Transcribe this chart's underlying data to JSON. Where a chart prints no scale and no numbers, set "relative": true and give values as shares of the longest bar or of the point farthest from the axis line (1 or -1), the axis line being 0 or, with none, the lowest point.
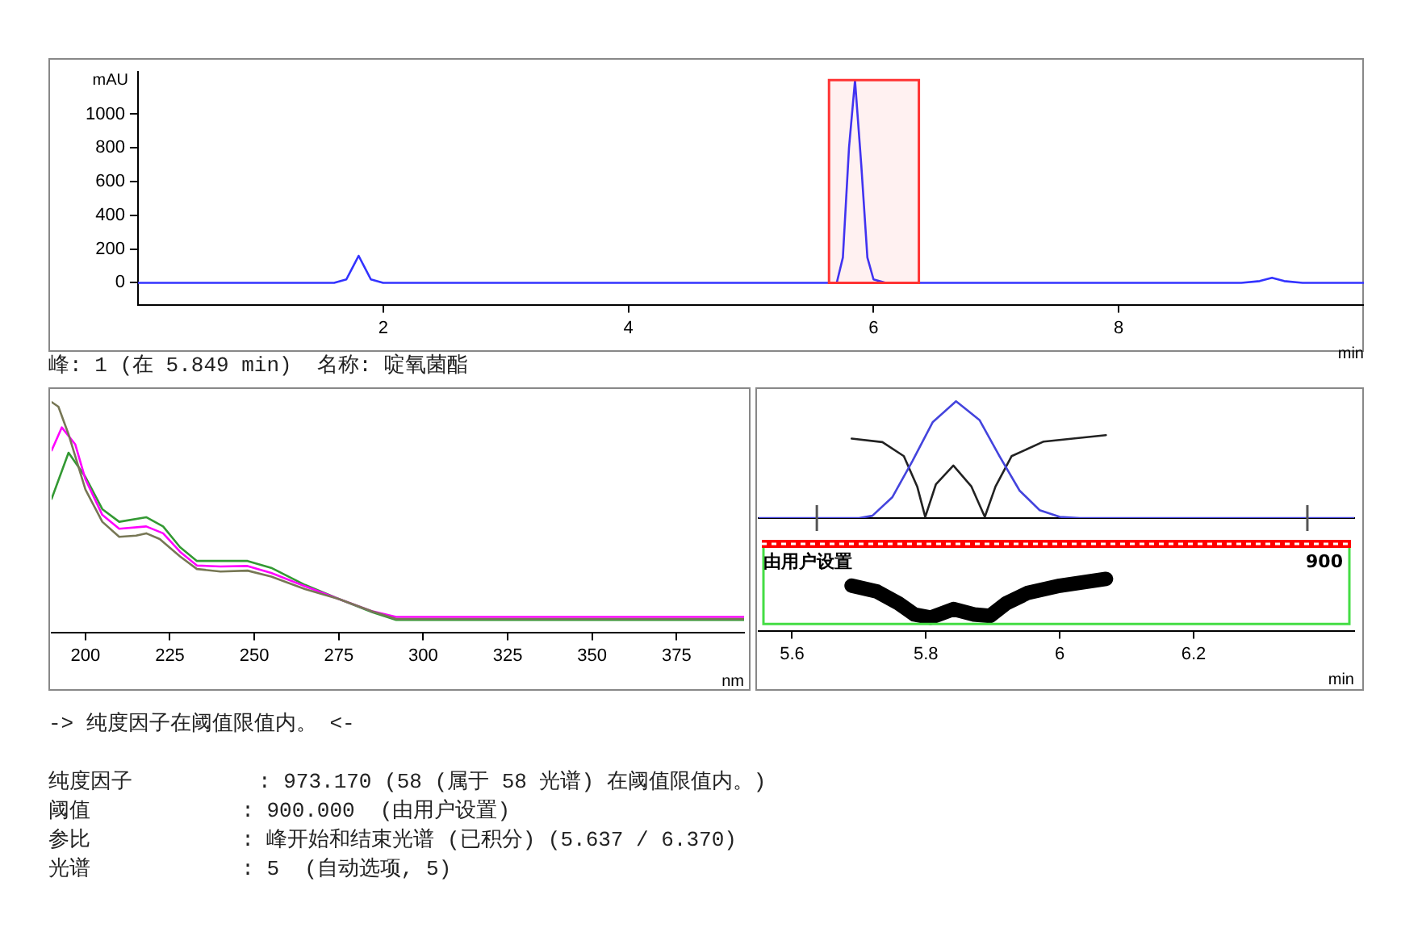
{
  "chart_data": [
    {
      "type": "line",
      "xlabel": "min",
      "ylabel": "mAU",
      "xlim": [
        0,
        10
      ],
      "xticks": [
        2,
        4,
        6,
        8
      ],
      "ylim": [
        -130,
        1250
      ],
      "yticks": [
        0,
        200,
        400,
        600,
        800,
        1000
      ],
      "legend": false,
      "x": [
        0,
        1.6,
        1.7,
        1.75,
        1.8,
        1.85,
        1.9,
        2.0,
        5.6,
        5.7,
        5.75,
        5.8,
        5.849,
        5.9,
        5.95,
        6.0,
        6.1,
        6.5,
        6.6,
        9.0,
        9.15,
        9.25,
        9.35,
        9.5,
        10
      ],
      "series": [
        {
          "color": "#3333ff",
          "values": [
            0,
            0,
            20,
            90,
            160,
            90,
            20,
            0,
            0,
            0,
            150,
            800,
            1200,
            700,
            150,
            20,
            0,
            0,
            0,
            0,
            10,
            30,
            10,
            0,
            0
          ]
        }
      ],
      "bands": [
        {
          "axis": "x",
          "from": 5.637,
          "to": 6.37,
          "color": "#ff3333"
        }
      ],
      "annotations": [
        "峰: 1 (在 5.849 min)  名称: 啶氧菌酯"
      ]
    },
    {
      "type": "line",
      "relative": true,
      "xlabel": "nm",
      "xlim": [
        190,
        395
      ],
      "xticks": [
        200,
        225,
        250,
        275,
        300,
        325,
        350,
        375
      ],
      "legend": false,
      "series": [
        {
          "color": "#777755",
          "x": [
            190,
            192,
            195,
            200,
            205,
            210,
            215,
            218,
            222,
            228,
            233,
            240,
            248,
            255,
            265,
            275,
            285,
            292,
            300,
            395
          ],
          "values": [
            1.0,
            0.98,
            0.86,
            0.62,
            0.48,
            0.415,
            0.42,
            0.43,
            0.405,
            0.33,
            0.275,
            0.264,
            0.268,
            0.242,
            0.188,
            0.145,
            0.091,
            0.058,
            0.058,
            0.058
          ]
        },
        {
          "color": "#ff00ff",
          "x": [
            190,
            193,
            197,
            200,
            205,
            210,
            218,
            223,
            228,
            233,
            240,
            248,
            255,
            265,
            275,
            285,
            292,
            300,
            395
          ],
          "values": [
            0.79,
            0.89,
            0.816,
            0.665,
            0.51,
            0.45,
            0.46,
            0.43,
            0.35,
            0.29,
            0.286,
            0.288,
            0.258,
            0.2,
            0.145,
            0.091,
            0.067,
            0.067,
            0.067
          ]
        },
        {
          "color": "#339933",
          "x": [
            190,
            195,
            200,
            205,
            210,
            218,
            223,
            228,
            233,
            240,
            248,
            255,
            265,
            275,
            285,
            292,
            300,
            395
          ],
          "values": [
            0.58,
            0.78,
            0.675,
            0.535,
            0.48,
            0.5,
            0.46,
            0.37,
            0.31,
            0.31,
            0.31,
            0.28,
            0.206,
            0.145,
            0.087,
            0.054,
            0.054,
            0.054
          ]
        }
      ]
    },
    {
      "type": "line",
      "relative": true,
      "xlim": [
        5.55,
        6.44
      ],
      "xticks": [
        5.6,
        5.8,
        6,
        6.2
      ],
      "tick_labels": false,
      "legend": false,
      "series": [
        {
          "color": "#4444dd",
          "x": [
            5.55,
            5.7,
            5.72,
            5.75,
            5.78,
            5.81,
            5.845,
            5.88,
            5.91,
            5.94,
            5.97,
            6.0,
            6.03,
            6.44
          ],
          "values": [
            0,
            0,
            0.02,
            0.18,
            0.49,
            0.82,
            1,
            0.84,
            0.53,
            0.235,
            0.067,
            0.01,
            0,
            0
          ]
        },
        {
          "color": "#222222",
          "x": [
            5.689,
            5.735,
            5.767,
            5.787,
            5.799,
            5.815,
            5.841,
            5.868,
            5.888,
            5.904,
            5.928,
            5.976,
            6.069
          ],
          "values": [
            0.68,
            0.65,
            0.53,
            0.27,
            0.01,
            0.29,
            0.45,
            0.27,
            0.01,
            0.27,
            0.53,
            0.655,
            0.71
          ]
        }
      ],
      "ref_lines": [
        {
          "axis": "x",
          "value": 5.637,
          "color": "#555555"
        },
        {
          "axis": "x",
          "value": 6.37,
          "color": "#555555"
        }
      ]
    },
    {
      "type": "line",
      "relative": true,
      "xlabel": "min",
      "xlim": [
        5.55,
        6.44
      ],
      "xticks": [
        5.6,
        5.8,
        6,
        6.2
      ],
      "legend": false,
      "series": [
        {
          "color": "#000000",
          "x": [
            5.689,
            5.727,
            5.759,
            5.783,
            5.807,
            5.841,
            5.872,
            5.896,
            5.92,
            5.952,
            6.0,
            6.069
          ],
          "values": [
            0.85,
            0.72,
            0.46,
            0.21,
            0.14,
            0.33,
            0.21,
            0.18,
            0.46,
            0.69,
            0.85,
            1
          ]
        }
      ],
      "ref_lines": [
        {
          "axis": "y",
          "value": 1.78,
          "color": "#ff0000"
        }
      ],
      "annotations": [
        {
          "text": "由用户设置",
          "x": 5.55,
          "y": 1.78
        },
        {
          "text": "900",
          "x": 6.44,
          "y": 1.78
        }
      ]
    },
    {
      "type": "other",
      "annotations": [
        "-> 纯度因子在阈值限值内。 <-",
        "纯度因子          : 973.170 (58 (属于 58 光谱) 在阈值限值内。)",
        "阈值            : 900.000  (由用户设置)",
        "参比            : 峰开始和结束光谱 (已积分) (5.637 / 6.370)",
        "光谱            : 5  (自动选项, 5)"
      ]
    }
  ]
}
